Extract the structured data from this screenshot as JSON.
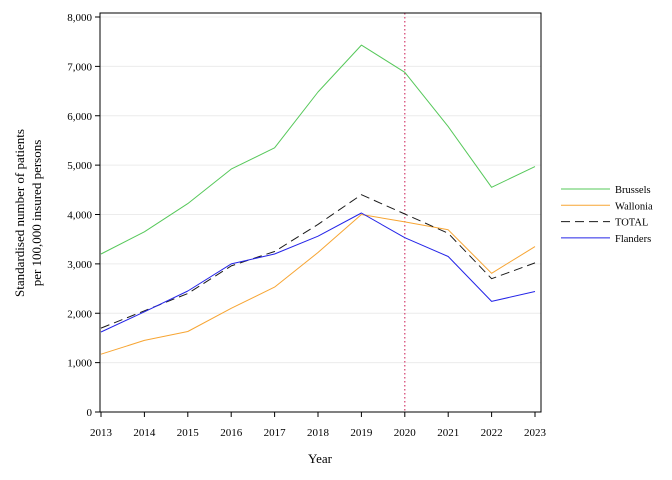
{
  "chart_data": {
    "type": "line",
    "title": "",
    "xlabel": "Year",
    "ylabel_lines": [
      "Standardised number of patients",
      "per 100,000 insured persons"
    ],
    "x": [
      2013,
      2014,
      2015,
      2016,
      2017,
      2018,
      2019,
      2020,
      2021,
      2022,
      2023
    ],
    "x_tick_labels": [
      "2013",
      "2014",
      "2015",
      "2016",
      "2017",
      "2018",
      "2019",
      "2020",
      "2021",
      "2022",
      "2023"
    ],
    "xlim": [
      2013,
      2023
    ],
    "ylim": [
      0,
      8000
    ],
    "y_ticks": [
      0,
      1000,
      2000,
      3000,
      4000,
      5000,
      6000,
      7000,
      8000
    ],
    "y_tick_labels": [
      "0",
      "1,000",
      "2,000",
      "3,000",
      "4,000",
      "5,000",
      "6,000",
      "7,000",
      "8,000"
    ],
    "grid": "horizontal",
    "reference_line": {
      "x": 2020,
      "color": "#d43c6c",
      "style": "dotted"
    },
    "legend_position": "right",
    "series": [
      {
        "name": "Brussels",
        "color": "#56c85a",
        "dash": "solid",
        "values": [
          3200,
          3650,
          4220,
          4920,
          5350,
          6480,
          7430,
          6880,
          5780,
          4550,
          4970
        ]
      },
      {
        "name": "Wallonia",
        "color": "#f7a533",
        "dash": "solid",
        "values": [
          1170,
          1450,
          1630,
          2100,
          2530,
          3230,
          4000,
          3850,
          3690,
          2810,
          3350
        ]
      },
      {
        "name": "TOTAL",
        "color": "#1a1a1a",
        "dash": "dashed",
        "values": [
          1700,
          2050,
          2400,
          2960,
          3250,
          3800,
          4400,
          4010,
          3620,
          2700,
          3020
        ]
      },
      {
        "name": "Flanders",
        "color": "#2424e8",
        "dash": "solid",
        "values": [
          1620,
          2030,
          2450,
          3000,
          3200,
          3560,
          4030,
          3530,
          3150,
          2240,
          2440
        ]
      }
    ]
  }
}
